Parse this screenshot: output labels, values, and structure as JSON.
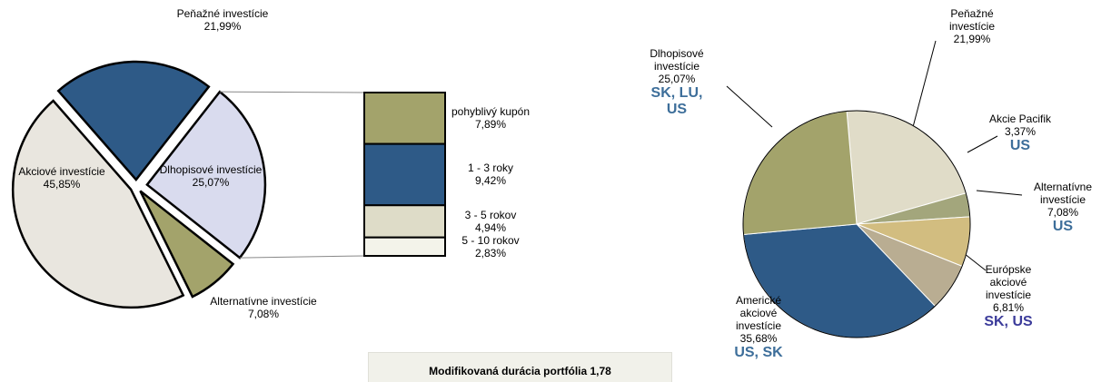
{
  "chart_data": [
    {
      "type": "pieofbar",
      "categories": [
        "Dlhopisové investície",
        "Alternatívne investície",
        "Akciové investície",
        "Peňažné investície"
      ],
      "values": [
        25.07,
        7.08,
        45.85,
        21.99
      ],
      "value_labels": [
        "25,07%",
        "7,08%",
        "45,85%",
        "21,99%"
      ],
      "colors": [
        "#d9dbee",
        "#a3a36b",
        "#e9e6df",
        "#2e5a87"
      ],
      "breakdown": {
        "categories": [
          "pohyblivý kupón",
          "1 - 3 roky",
          "3 - 5 rokov",
          "5 - 10 rokov"
        ],
        "values": [
          7.89,
          9.42,
          4.94,
          2.83
        ],
        "value_labels": [
          "7,89%",
          "9,42%",
          "4,94%",
          "2,83%"
        ],
        "colors": [
          "#a3a36b",
          "#2e5a87",
          "#dedcc8",
          "#f3f3ea"
        ]
      },
      "annotation": "Modifikovaná durácia portfólia 1,78"
    },
    {
      "type": "pie",
      "categories": [
        "Peňažné investície",
        "Akcie Pacifik",
        "Alternatívne investície",
        "Európske akciové investície",
        "Americké akciové investície",
        "Dlhopisové investície"
      ],
      "values": [
        21.99,
        3.37,
        7.08,
        6.81,
        35.68,
        25.07
      ],
      "value_labels": [
        "21,99%",
        "3,37%",
        "7,08%",
        "6,81%",
        "35,68%",
        "25,07%"
      ],
      "colors": [
        "#e0dcc8",
        "#a3a67c",
        "#d2bd80",
        "#b9ad92",
        "#2e5a87",
        "#a3a36b"
      ],
      "countries": [
        null,
        "US",
        "US",
        "SK, US",
        "US, SK",
        "SK, LU, US"
      ]
    }
  ]
}
